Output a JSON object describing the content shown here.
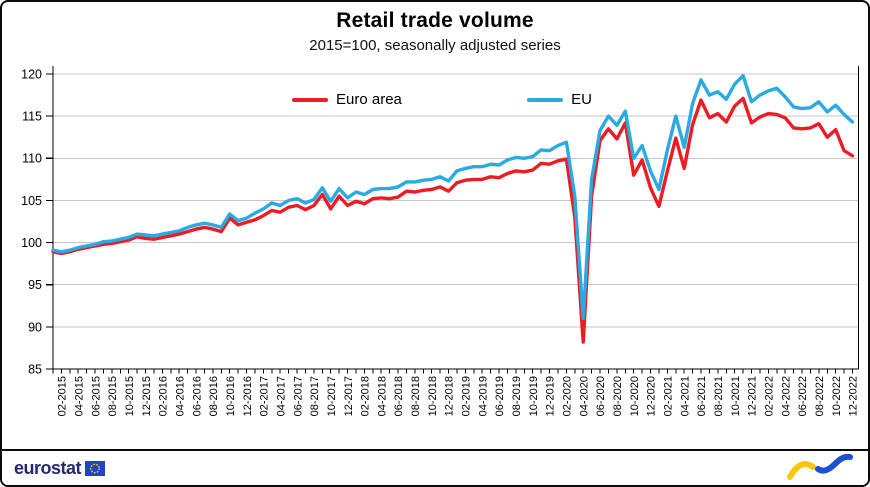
{
  "header": {
    "title": "Retail trade volume",
    "subtitle": "2015=100, seasonally adjusted series"
  },
  "legend": [
    {
      "label": "Euro area",
      "color": "#ed1c24"
    },
    {
      "label": "EU",
      "color": "#29abe2"
    }
  ],
  "footer": {
    "brand": "eurostat"
  },
  "chart_data": {
    "type": "line",
    "title": "Retail trade volume",
    "subtitle": "2015=100, seasonally adjusted series",
    "ylim": [
      85,
      120
    ],
    "y_ticks": [
      85,
      90,
      95,
      100,
      105,
      110,
      115,
      120
    ],
    "grid": "horizontal",
    "grid_color": "#c6c6c6",
    "axis_color": "#000000",
    "legend_position": "top-center",
    "x_unit": "month",
    "x_range": [
      "01-2015",
      "12-2022"
    ],
    "x_labels": [
      "02-2015",
      "04-2015",
      "06-2015",
      "08-2015",
      "10-2015",
      "12-2015",
      "02-2016",
      "04-2016",
      "06-2016",
      "08-2016",
      "10-2016",
      "12-2016",
      "02-2017",
      "04-2017",
      "06-2017",
      "08-2017",
      "10-2017",
      "12-2017",
      "02-2018",
      "04-2018",
      "06-2018",
      "08-2018",
      "10-2018",
      "12-2018",
      "02-2019",
      "04-2019",
      "06-2019",
      "08-2019",
      "10-2019",
      "12-2019",
      "02-2020",
      "04-2020",
      "06-2020",
      "08-2020",
      "10-2020",
      "12-2020",
      "02-2021",
      "04-2021",
      "06-2021",
      "08-2021",
      "10-2021",
      "12-2021",
      "02-2022",
      "04-2022",
      "06-2022",
      "08-2022",
      "10-2022",
      "12-2022"
    ],
    "first_label_index": 1,
    "label_every": 2,
    "series": [
      {
        "name": "Euro area",
        "color": "#ed1c24",
        "values": [
          98.9,
          98.7,
          98.9,
          99.2,
          99.4,
          99.6,
          99.8,
          99.9,
          100.1,
          100.3,
          100.7,
          100.5,
          100.4,
          100.6,
          100.8,
          101.0,
          101.3,
          101.6,
          101.8,
          101.6,
          101.3,
          102.9,
          102.1,
          102.4,
          102.7,
          103.2,
          103.8,
          103.6,
          104.2,
          104.4,
          103.9,
          104.4,
          105.7,
          104.0,
          105.5,
          104.4,
          104.9,
          104.6,
          105.2,
          105.3,
          105.2,
          105.4,
          106.1,
          106.0,
          106.2,
          106.3,
          106.6,
          106.1,
          107.1,
          107.4,
          107.5,
          107.5,
          107.8,
          107.7,
          108.2,
          108.5,
          108.4,
          108.6,
          109.4,
          109.3,
          109.7,
          109.9,
          103.0,
          88.2,
          105.5,
          112.1,
          113.5,
          112.3,
          114.2,
          108.0,
          109.8,
          106.5,
          104.3,
          108.5,
          112.4,
          108.8,
          114.0,
          116.9,
          114.8,
          115.3,
          114.3,
          116.2,
          117.1,
          114.2,
          114.9,
          115.3,
          115.2,
          114.8,
          113.6,
          113.5,
          113.6,
          114.1,
          112.5,
          113.4,
          110.9,
          110.3
        ]
      },
      {
        "name": "EU",
        "color": "#29abe2",
        "values": [
          99.1,
          98.9,
          99.1,
          99.4,
          99.6,
          99.8,
          100.1,
          100.2,
          100.4,
          100.6,
          101.0,
          100.9,
          100.8,
          101.0,
          101.2,
          101.4,
          101.8,
          102.1,
          102.3,
          102.1,
          101.8,
          103.4,
          102.6,
          102.9,
          103.5,
          104.0,
          104.7,
          104.4,
          105.0,
          105.2,
          104.7,
          105.1,
          106.5,
          104.9,
          106.4,
          105.3,
          106.0,
          105.7,
          106.3,
          106.4,
          106.4,
          106.6,
          107.2,
          107.2,
          107.4,
          107.5,
          107.8,
          107.3,
          108.5,
          108.8,
          109.0,
          109.0,
          109.3,
          109.2,
          109.8,
          110.1,
          110.0,
          110.2,
          111.0,
          110.9,
          111.5,
          111.9,
          105.5,
          91.0,
          107.5,
          113.3,
          115.0,
          113.9,
          115.6,
          110.0,
          111.5,
          108.5,
          106.3,
          111.0,
          115.0,
          111.3,
          116.5,
          119.3,
          117.5,
          117.9,
          117.0,
          118.8,
          119.8,
          116.7,
          117.5,
          118.0,
          118.3,
          117.3,
          116.1,
          115.9,
          116.0,
          116.7,
          115.5,
          116.3,
          115.2,
          114.3
        ]
      }
    ]
  }
}
